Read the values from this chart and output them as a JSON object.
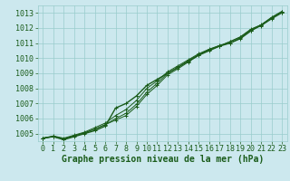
{
  "title": "Graphe pression niveau de la mer (hPa)",
  "bg_color": "#cce8ee",
  "grid_color": "#99cccc",
  "line_color": "#1a5c1a",
  "text_color": "#1a5c1a",
  "title_fontsize": 7,
  "tick_fontsize": 6,
  "xlim": [
    -0.5,
    23.5
  ],
  "ylim": [
    1004.5,
    1013.5
  ],
  "yticks": [
    1005,
    1006,
    1007,
    1008,
    1009,
    1010,
    1011,
    1012,
    1013
  ],
  "xticks": [
    0,
    1,
    2,
    3,
    4,
    5,
    6,
    7,
    8,
    9,
    10,
    11,
    12,
    13,
    14,
    15,
    16,
    17,
    18,
    19,
    20,
    21,
    22,
    23
  ],
  "series": [
    [
      1004.7,
      1004.8,
      1004.6,
      1004.8,
      1005.0,
      1005.2,
      1005.5,
      1006.7,
      1007.0,
      1007.5,
      1008.2,
      1008.6,
      1009.0,
      1009.4,
      1009.8,
      1010.2,
      1010.5,
      1010.8,
      1011.0,
      1011.3,
      1011.8,
      1012.2,
      1012.7,
      1013.1
    ],
    [
      1004.7,
      1004.85,
      1004.7,
      1004.9,
      1005.1,
      1005.4,
      1005.7,
      1006.2,
      1006.6,
      1007.2,
      1008.0,
      1008.5,
      1009.1,
      1009.5,
      1009.9,
      1010.3,
      1010.6,
      1010.85,
      1011.0,
      1011.35,
      1011.85,
      1012.15,
      1012.6,
      1013.0
    ],
    [
      1004.7,
      1004.8,
      1004.65,
      1004.85,
      1005.05,
      1005.3,
      1005.6,
      1005.9,
      1006.2,
      1006.8,
      1007.6,
      1008.2,
      1008.9,
      1009.3,
      1009.75,
      1010.2,
      1010.55,
      1010.8,
      1011.1,
      1011.4,
      1011.9,
      1012.2,
      1012.65,
      1013.05
    ],
    [
      1004.7,
      1004.8,
      1004.65,
      1004.85,
      1005.05,
      1005.3,
      1005.6,
      1006.0,
      1006.35,
      1006.95,
      1007.75,
      1008.35,
      1009.0,
      1009.4,
      1009.85,
      1010.25,
      1010.58,
      1010.83,
      1011.1,
      1011.42,
      1011.92,
      1012.22,
      1012.67,
      1013.07
    ]
  ]
}
